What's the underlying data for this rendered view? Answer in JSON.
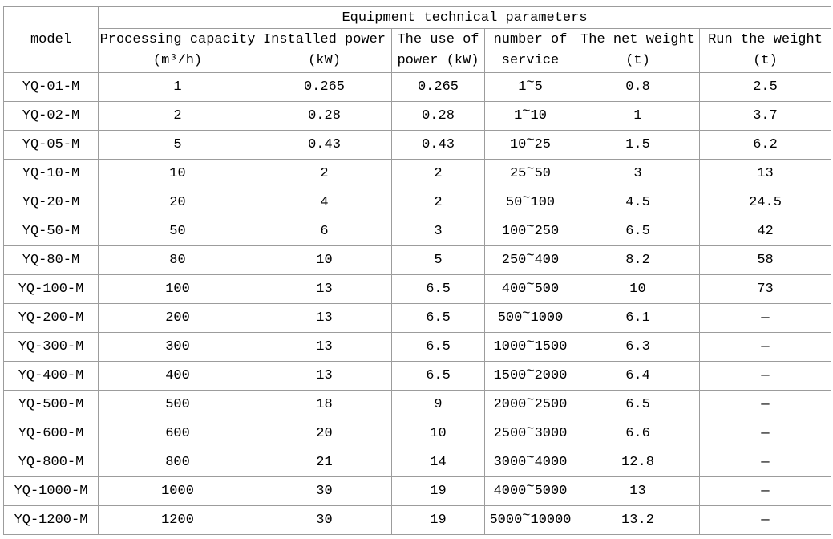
{
  "colors": {
    "border": "#9c9c9c",
    "text": "#000000",
    "bg": "#ffffff"
  },
  "table": {
    "group_title": "Equipment technical parameters",
    "headers": {
      "model": "model",
      "processing": {
        "l1": "Processing capacity",
        "l2": "(m³/h)"
      },
      "installed": {
        "l1": "Installed power",
        "l2": "(kW)"
      },
      "use": {
        "l1": "The use of",
        "l2": "power (kW)"
      },
      "service": {
        "l1": "number of",
        "l2": "service"
      },
      "net": {
        "l1": "The net weight",
        "l2": "(t)"
      },
      "run": {
        "l1": "Run the weight",
        "l2": "(t)"
      }
    }
  },
  "chart_data": {
    "type": "table",
    "title": "Equipment technical parameters",
    "columns": [
      "model",
      "Processing capacity (m³/h)",
      "Installed power (kW)",
      "The use of power (kW)",
      "number of service",
      "The net weight (t)",
      "Run the weight (t)"
    ],
    "rows": [
      [
        "YQ-01-M",
        "1",
        "0.265",
        "0.265",
        "1~5",
        "0.8",
        "2.5"
      ],
      [
        "YQ-02-M",
        "2",
        "0.28",
        "0.28",
        "1~10",
        "1",
        "3.7"
      ],
      [
        "YQ-05-M",
        "5",
        "0.43",
        "0.43",
        "10~25",
        "1.5",
        "6.2"
      ],
      [
        "YQ-10-M",
        "10",
        "2",
        "2",
        "25~50",
        "3",
        "13"
      ],
      [
        "YQ-20-M",
        "20",
        "4",
        "2",
        "50~100",
        "4.5",
        "24.5"
      ],
      [
        "YQ-50-M",
        "50",
        "6",
        "3",
        "100~250",
        "6.5",
        "42"
      ],
      [
        "YQ-80-M",
        "80",
        "10",
        "5",
        "250~400",
        "8.2",
        "58"
      ],
      [
        "YQ-100-M",
        "100",
        "13",
        "6.5",
        "400~500",
        "10",
        "73"
      ],
      [
        "YQ-200-M",
        "200",
        "13",
        "6.5",
        "500~1000",
        "6.1",
        "—"
      ],
      [
        "YQ-300-M",
        "300",
        "13",
        "6.5",
        "1000~1500",
        "6.3",
        "—"
      ],
      [
        "YQ-400-M",
        "400",
        "13",
        "6.5",
        "1500~2000",
        "6.4",
        "—"
      ],
      [
        "YQ-500-M",
        "500",
        "18",
        "9",
        "2000~2500",
        "6.5",
        "—"
      ],
      [
        "YQ-600-M",
        "600",
        "20",
        "10",
        "2500~3000",
        "6.6",
        "—"
      ],
      [
        "YQ-800-M",
        "800",
        "21",
        "14",
        "3000~4000",
        "12.8",
        "—"
      ],
      [
        "YQ-1000-M",
        "1000",
        "30",
        "19",
        "4000~5000",
        "13",
        "—"
      ],
      [
        "YQ-1200-M",
        "1200",
        "30",
        "19",
        "5000~10000",
        "13.2",
        "—"
      ]
    ]
  }
}
